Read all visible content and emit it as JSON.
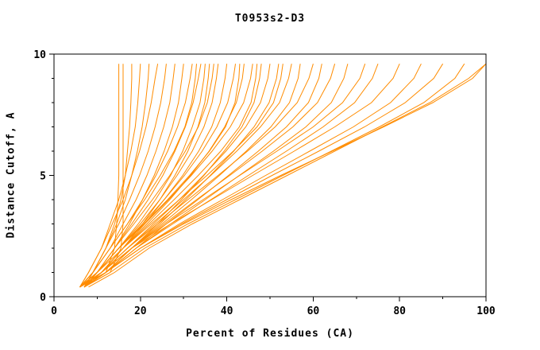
{
  "chart_data": {
    "type": "line",
    "title": "T0953s2-D3",
    "xlabel": "Percent of Residues (CA)",
    "ylabel": "Distance Cutoff, A",
    "xlim": [
      0,
      100
    ],
    "ylim": [
      0,
      10
    ],
    "x_ticks": [
      0,
      20,
      40,
      60,
      80,
      100
    ],
    "x_minor_ticks": [
      10,
      30,
      50,
      70,
      90
    ],
    "y_ticks": [
      0,
      5,
      10
    ],
    "y_minor_ticks": [
      1,
      2,
      3,
      4,
      6,
      7,
      8,
      9
    ],
    "grid": false,
    "legend": "none",
    "line_color": "#ff8c00",
    "axis_color": "#000000",
    "y_grid": [
      0.4,
      1,
      2,
      3,
      4,
      5,
      6,
      7,
      8,
      9,
      9.6
    ],
    "series": [
      {
        "x": [
          6,
          12,
          14,
          14.5,
          14.8,
          15,
          15,
          15,
          15,
          15,
          15
        ]
      },
      {
        "x": [
          7,
          13,
          15.5,
          16,
          16,
          16,
          16,
          16,
          16,
          16,
          16
        ]
      },
      {
        "x": [
          6,
          9,
          12,
          14,
          15.5,
          16.5,
          17,
          17.5,
          17.8,
          18,
          18
        ]
      },
      {
        "x": [
          6,
          8,
          11,
          13,
          15,
          16.5,
          17.8,
          18.8,
          19.4,
          19.8,
          20
        ]
      },
      {
        "x": [
          7,
          9,
          12,
          14.5,
          16.5,
          18,
          19.3,
          20.4,
          21.2,
          21.8,
          22
        ]
      },
      {
        "x": [
          6,
          8,
          11,
          13.5,
          16,
          18,
          19.8,
          21.3,
          22.5,
          23.4,
          24
        ]
      },
      {
        "x": [
          7,
          9,
          12,
          15,
          17.5,
          19.8,
          21.8,
          23.4,
          24.7,
          25.6,
          26
        ]
      },
      {
        "x": [
          6,
          9,
          13,
          16,
          19,
          21.5,
          23.6,
          25.4,
          26.8,
          27.6,
          28
        ]
      },
      {
        "x": [
          7,
          10,
          14,
          17.5,
          20.5,
          23.2,
          25.5,
          27.4,
          28.8,
          29.6,
          30
        ]
      },
      {
        "x": [
          6,
          9,
          13,
          17,
          20.5,
          23.6,
          26.3,
          28.6,
          30.4,
          31.5,
          32
        ]
      },
      {
        "x": [
          6,
          9,
          13,
          17,
          21,
          24.6,
          27.8,
          30.3,
          31.9,
          32.7,
          33
        ]
      },
      {
        "x": [
          7,
          10,
          14,
          18,
          21.8,
          25.2,
          28,
          30.4,
          32.2,
          33.4,
          34
        ]
      },
      {
        "x": [
          6,
          10,
          15,
          19.5,
          23.5,
          27,
          29.8,
          32,
          33.8,
          34.7,
          35
        ]
      },
      {
        "x": [
          7,
          11,
          16,
          20.5,
          24.5,
          28,
          31,
          33.3,
          34.9,
          35.7,
          36
        ]
      },
      {
        "x": [
          7,
          10,
          14,
          18.5,
          22.8,
          26.8,
          30.4,
          33.4,
          35.5,
          36.6,
          37
        ]
      },
      {
        "x": [
          6,
          10,
          15,
          20,
          24.5,
          28.5,
          32,
          34.7,
          36.6,
          37.6,
          38
        ]
      },
      {
        "x": [
          7,
          11,
          16,
          21,
          25.5,
          29.8,
          33.5,
          36.5,
          38.5,
          39.6,
          40
        ]
      },
      {
        "x": [
          6,
          10,
          15,
          20.5,
          25.5,
          30.2,
          34.3,
          37.7,
          40.2,
          41.5,
          42
        ]
      },
      {
        "x": [
          6,
          10,
          15,
          20.8,
          26.3,
          31.4,
          36,
          39.7,
          41.9,
          42.8,
          43
        ]
      },
      {
        "x": [
          7,
          11,
          16,
          21.5,
          26.8,
          31.6,
          35.9,
          39.5,
          42.2,
          43.6,
          44
        ]
      },
      {
        "x": [
          6,
          10,
          15,
          21,
          26.5,
          31.8,
          36.6,
          40.8,
          43.9,
          45.5,
          46
        ]
      },
      {
        "x": [
          7,
          11,
          16,
          22,
          27.8,
          33.4,
          38.6,
          42.9,
          45.6,
          46.7,
          47
        ]
      },
      {
        "x": [
          7,
          12,
          18,
          24,
          29.5,
          34.7,
          39.4,
          43.5,
          46.3,
          47.6,
          48
        ]
      },
      {
        "x": [
          6,
          11,
          17,
          23,
          29,
          34.6,
          39.8,
          44.4,
          47.8,
          49.5,
          50
        ]
      },
      {
        "x": [
          7,
          12,
          18,
          24.5,
          30.5,
          36.2,
          41.6,
          46.3,
          49.8,
          51.5,
          52
        ]
      },
      {
        "x": [
          6,
          10,
          16,
          22.5,
          29,
          35.4,
          41.5,
          47,
          50.8,
          52.5,
          53
        ]
      },
      {
        "x": [
          6,
          11,
          17,
          23.5,
          30,
          36.3,
          42.3,
          47.8,
          52.2,
          54.3,
          55
        ]
      },
      {
        "x": [
          7,
          12,
          18,
          25,
          31.8,
          38.3,
          44.5,
          50.2,
          54.5,
          56.5,
          57
        ]
      },
      {
        "x": [
          6,
          11,
          17,
          24,
          31,
          38,
          44.8,
          51.2,
          56.3,
          59,
          60
        ]
      },
      {
        "x": [
          7,
          12,
          19,
          26,
          33.3,
          40.4,
          47.3,
          53.8,
          58.9,
          61.3,
          62
        ]
      },
      {
        "x": [
          6,
          11,
          18,
          25.5,
          33,
          40.7,
          48.2,
          55.3,
          61,
          64,
          65
        ]
      },
      {
        "x": [
          7,
          12,
          19,
          27,
          35,
          42.9,
          50.8,
          58.3,
          64.2,
          67.1,
          68
        ]
      },
      {
        "x": [
          6,
          11,
          18,
          26,
          34.5,
          43,
          51.6,
          60,
          66.8,
          70.8,
          72
        ]
      },
      {
        "x": [
          7,
          12,
          19,
          27.5,
          36.3,
          45,
          53.8,
          62.3,
          69.6,
          73.7,
          75
        ]
      },
      {
        "x": [
          6,
          11,
          18,
          27,
          36.5,
          46,
          55.6,
          65,
          73.5,
          78.5,
          80
        ]
      },
      {
        "x": [
          7,
          12,
          20,
          29,
          39,
          49,
          59.2,
          69.3,
          77.9,
          83.3,
          85
        ]
      },
      {
        "x": [
          6,
          12,
          20,
          29.5,
          40,
          50.5,
          61.3,
          71.9,
          81.3,
          87.9,
          90
        ]
      },
      {
        "x": [
          7,
          13,
          21,
          31,
          42,
          53,
          64.2,
          75.3,
          85.6,
          92.8,
          95
        ]
      },
      {
        "x": [
          6,
          12,
          20,
          30,
          41,
          52.5,
          64.4,
          76.3,
          87.7,
          96.9,
          100
        ]
      },
      {
        "x": [
          8,
          14,
          22,
          32,
          43,
          54,
          65,
          76,
          87,
          96,
          100
        ]
      }
    ]
  }
}
